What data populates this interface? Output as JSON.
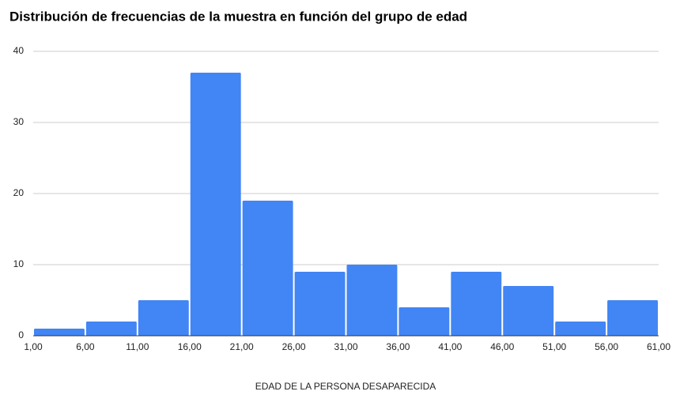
{
  "chart_data": {
    "type": "histogram",
    "title": "Distribución de frecuencias de la muestra en función del grupo de edad",
    "x_label": "EDAD DE LA PERSONA DESAPARECIDA",
    "bins": [
      1,
      6,
      11,
      16,
      21,
      26,
      31,
      36,
      41,
      46,
      51,
      56,
      61
    ],
    "counts": [
      1,
      2,
      5,
      37,
      19,
      9,
      10,
      4,
      9,
      7,
      2,
      5
    ],
    "color": "#4285f4",
    "xlim": [
      1,
      61
    ],
    "xticks": [
      {
        "value": 1,
        "label": "1,00"
      },
      {
        "value": 6,
        "label": "6,00"
      },
      {
        "value": 11,
        "label": "11,00"
      },
      {
        "value": 16,
        "label": "16,00"
      },
      {
        "value": 21,
        "label": "21,00"
      },
      {
        "value": 26,
        "label": "26,00"
      },
      {
        "value": 31,
        "label": "31,00"
      },
      {
        "value": 36,
        "label": "36,00"
      },
      {
        "value": 41,
        "label": "41,00"
      },
      {
        "value": 46,
        "label": "46,00"
      },
      {
        "value": 51,
        "label": "51,00"
      },
      {
        "value": 56,
        "label": "56,00"
      },
      {
        "value": 61,
        "label": "61,00"
      }
    ],
    "ylim": [
      0,
      40
    ],
    "yticks": [
      0,
      10,
      20,
      30,
      40
    ],
    "grid": true
  }
}
